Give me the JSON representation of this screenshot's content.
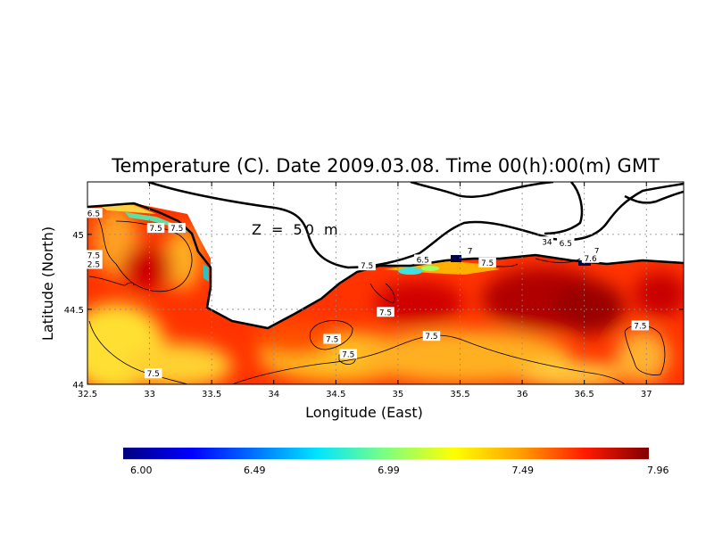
{
  "chart_data": {
    "type": "heatmap",
    "title": "Temperature (C). Date 2009.03.08. Time 00(h):00(m) GMT",
    "xlabel": "Longitude (East)",
    "ylabel": "Latitude (North)",
    "annotation": "Z = 50 m",
    "xlim": [
      32.5,
      37.3
    ],
    "ylim": [
      44.0,
      45.35
    ],
    "x_ticks": [
      "32.5",
      "33",
      "33.5",
      "34",
      "34.5",
      "35",
      "35.5",
      "36",
      "36.5",
      "37"
    ],
    "x_tick_values": [
      32.5,
      33,
      33.5,
      34,
      34.5,
      35,
      35.5,
      36,
      36.5,
      37
    ],
    "y_ticks": [
      "44",
      "44.5",
      "45"
    ],
    "y_tick_values": [
      44,
      44.5,
      45
    ],
    "grid": true,
    "colorbar": {
      "min": 6.0,
      "max": 7.96,
      "tick_labels": [
        "6.00",
        "6.49",
        "6.99",
        "7.49",
        "7.96"
      ],
      "tick_values": [
        6.0,
        6.49,
        6.99,
        7.49,
        7.96
      ]
    },
    "contour_labels": [
      {
        "text": "7.5",
        "lon": 33.05,
        "lat": 45.04
      },
      {
        "text": "7.5",
        "lon": 33.22,
        "lat": 45.04
      },
      {
        "text": "7.5",
        "lon": 32.55,
        "lat": 44.86
      },
      {
        "text": "2.5",
        "lon": 32.55,
        "lat": 44.8
      },
      {
        "text": "7.5",
        "lon": 33.03,
        "lat": 44.07
      },
      {
        "text": "7.5",
        "lon": 34.75,
        "lat": 44.79
      },
      {
        "text": "7.5",
        "lon": 34.9,
        "lat": 44.48
      },
      {
        "text": "7.5",
        "lon": 34.47,
        "lat": 44.3
      },
      {
        "text": "7.5",
        "lon": 34.6,
        "lat": 44.2
      },
      {
        "text": "7.5",
        "lon": 35.27,
        "lat": 44.32
      },
      {
        "text": "6.5",
        "lon": 35.2,
        "lat": 44.83
      },
      {
        "text": "7",
        "lon": 35.58,
        "lat": 44.89
      },
      {
        "text": "7.5",
        "lon": 35.72,
        "lat": 44.81
      },
      {
        "text": "34",
        "lon": 36.2,
        "lat": 44.95
      },
      {
        "text": "6.5",
        "lon": 36.35,
        "lat": 44.94
      },
      {
        "text": "7",
        "lon": 36.6,
        "lat": 44.89
      },
      {
        "text": "7.6",
        "lon": 36.55,
        "lat": 44.84
      },
      {
        "text": "7.5",
        "lon": 36.95,
        "lat": 44.39
      },
      {
        "text": "6.5",
        "lon": 32.55,
        "lat": 45.14
      }
    ]
  }
}
